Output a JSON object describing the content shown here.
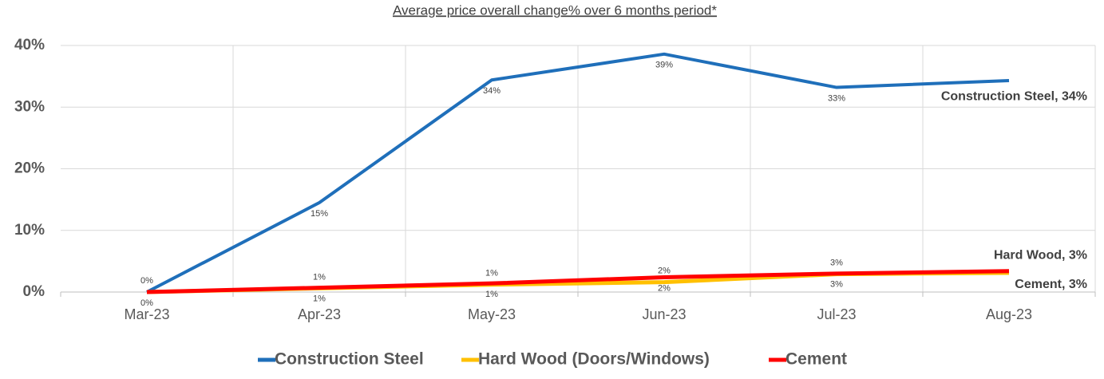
{
  "chart_data": {
    "type": "line",
    "title": "Average price overall change% over 6 months period*",
    "categories": [
      "Mar-23",
      "Apr-23",
      "May-23",
      "Jun-23",
      "Jul-23",
      "Aug-23"
    ],
    "ylim": [
      0,
      40
    ],
    "yticks": [
      {
        "value": 0,
        "label": "0%"
      },
      {
        "value": 10,
        "label": "10%"
      },
      {
        "value": 20,
        "label": "20%"
      },
      {
        "value": 30,
        "label": "30%"
      },
      {
        "value": 40,
        "label": "40%"
      }
    ],
    "grid": true,
    "legend": "bottom",
    "series": [
      {
        "name": "Construction Steel",
        "color": "#1f6fba",
        "values": [
          0,
          14.5,
          34.4,
          38.6,
          33.2,
          34.3
        ],
        "value_labels": [
          "0%",
          "15%",
          "34%",
          "39%",
          "33%",
          "Construction Steel, 34%"
        ],
        "label_side": "below"
      },
      {
        "name": "Hard Wood (Doors/Windows)",
        "color": "#ffc000",
        "values": [
          0,
          0.6,
          1.2,
          1.6,
          2.9,
          3.1
        ],
        "value_labels": [
          "0%",
          "1%",
          "1%",
          "2%",
          "3%",
          "Hard Wood, 3%"
        ],
        "label_side": "above"
      },
      {
        "name": "Cement",
        "color": "#ff0000",
        "values": [
          0,
          0.7,
          1.4,
          2.4,
          3.0,
          3.4
        ],
        "value_labels": [
          null,
          "1%",
          "1%",
          "2%",
          "3%",
          "Cement, 3%"
        ],
        "label_side": "below"
      }
    ]
  }
}
